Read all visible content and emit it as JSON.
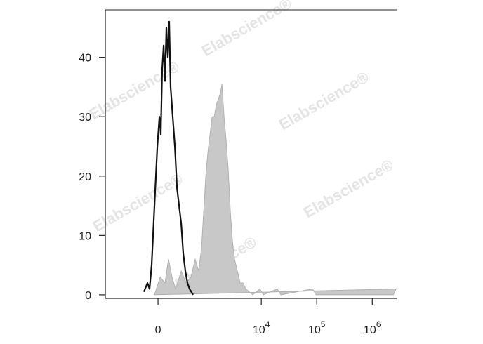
{
  "chart_data": {
    "type": "histogram-overlay",
    "watermarks": [
      "Elabscience®",
      "Elabscience®",
      "Elabscience®",
      "Elabscience®",
      "Elabscience®",
      "Elabscience®"
    ],
    "xscale": "biexponential",
    "xlim": [
      -1213,
      2750000
    ],
    "xticks": [
      0,
      {
        "value": 10000,
        "label": "10",
        "exponent": "4"
      },
      {
        "value": 100000,
        "label": "10",
        "exponent": "5"
      },
      {
        "value": 1000000,
        "label": "10",
        "exponent": "6"
      }
    ],
    "ylim": [
      -0.6,
      48
    ],
    "yticks": [
      0,
      10,
      20,
      30,
      40
    ],
    "series": [
      {
        "color": "#c8c8c8",
        "fill": true,
        "x": [
          -41,
          24,
          81,
          124,
          169,
          219,
          308,
          400,
          507,
          616,
          721,
          817,
          895,
          981,
          1074,
          1175,
          1285,
          1406,
          1537,
          1679,
          1835,
          1944,
          2124,
          2320,
          2534,
          2766,
          3021,
          3298,
          3710,
          4164,
          4684,
          5268,
          6092,
          7044,
          9439,
          10912,
          19539,
          22600,
          83950,
          97050,
          2399000,
          2690000
        ],
        "values": [
          0,
          3,
          2,
          6,
          3,
          1,
          4,
          2,
          3,
          6,
          4,
          8,
          14,
          20,
          24,
          27,
          30,
          30,
          32,
          33,
          34,
          35.5,
          30,
          26,
          21,
          14,
          9,
          6,
          4,
          2,
          2,
          1,
          0.5,
          0,
          1,
          0,
          1,
          0,
          1,
          0,
          0,
          1
        ]
      },
      {
        "color": "#111111",
        "fill": false,
        "x": [
          -171,
          -125,
          -99,
          -74,
          -41,
          -8,
          16,
          32,
          48,
          65,
          81,
          98,
          115,
          133,
          151,
          179,
          209,
          240,
          273,
          308,
          345,
          385,
          428,
          474,
          559
        ],
        "values": [
          0.5,
          2,
          1,
          5,
          15,
          25,
          30,
          27,
          38,
          42,
          36,
          45,
          40,
          46,
          35,
          30,
          25,
          18,
          15,
          12,
          7,
          4,
          2,
          1,
          0
        ]
      }
    ]
  }
}
